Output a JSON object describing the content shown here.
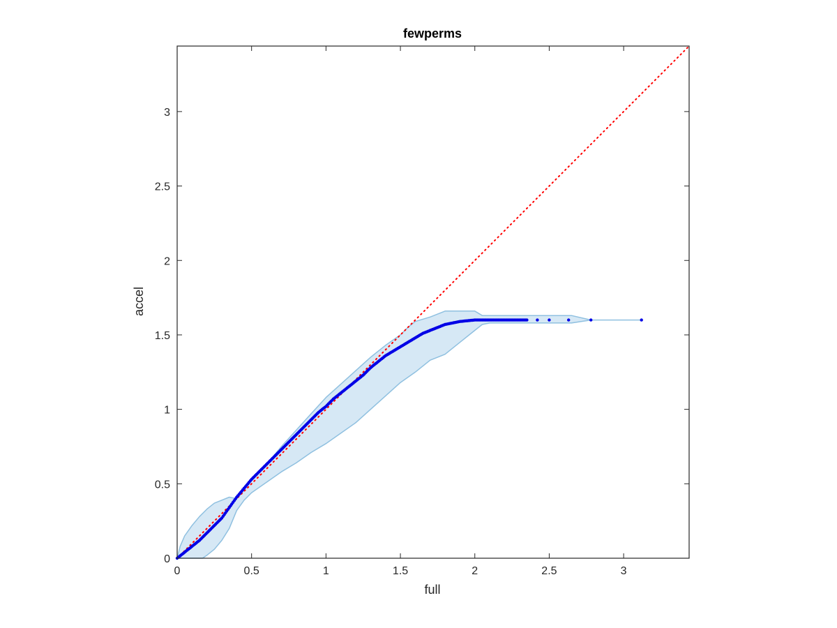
{
  "chart_data": {
    "type": "scatter",
    "title": "fewperms",
    "xlabel": "full",
    "ylabel": "accel",
    "xlim": [
      0,
      3.44
    ],
    "ylim": [
      0,
      3.44
    ],
    "xticks": [
      0,
      0.5,
      1,
      1.5,
      2,
      2.5,
      3
    ],
    "yticks": [
      0,
      0.5,
      1,
      1.5,
      2,
      2.5,
      3
    ],
    "xtick_labels": [
      "0",
      "0.5",
      "1",
      "1.5",
      "2",
      "2.5",
      "3"
    ],
    "ytick_labels": [
      "0",
      "0.5",
      "1",
      "1.5",
      "2",
      "2.5",
      "3"
    ],
    "grid": false,
    "colors": {
      "points": "#0000e6",
      "band_fill": "#d6e8f5",
      "band_edge": "#8fc0e0",
      "reference": "#ff0000",
      "axes": "#262626"
    },
    "reference_line": {
      "style": "dotted",
      "x": [
        0,
        3.44
      ],
      "y": [
        0,
        3.44
      ]
    },
    "confidence_band": {
      "upper": {
        "x": [
          0,
          0.02,
          0.05,
          0.1,
          0.15,
          0.2,
          0.25,
          0.3,
          0.35,
          0.4,
          0.5,
          0.6,
          0.7,
          0.8,
          0.9,
          1.0,
          1.1,
          1.2,
          1.3,
          1.4,
          1.5,
          1.55,
          1.6,
          1.7,
          1.8,
          1.9,
          2.0,
          2.05,
          2.1,
          2.3,
          2.5,
          2.65,
          2.78,
          3.12
        ],
        "y": [
          0,
          0.08,
          0.15,
          0.22,
          0.28,
          0.33,
          0.37,
          0.39,
          0.41,
          0.4,
          0.52,
          0.63,
          0.75,
          0.86,
          0.97,
          1.08,
          1.17,
          1.26,
          1.35,
          1.43,
          1.5,
          1.55,
          1.59,
          1.62,
          1.66,
          1.66,
          1.66,
          1.63,
          1.63,
          1.63,
          1.63,
          1.63,
          1.6,
          1.6
        ]
      },
      "lower": {
        "x": [
          3.12,
          2.78,
          2.65,
          2.5,
          2.3,
          2.1,
          2.05,
          2.0,
          1.9,
          1.8,
          1.7,
          1.6,
          1.5,
          1.4,
          1.3,
          1.2,
          1.1,
          1.0,
          0.9,
          0.8,
          0.7,
          0.6,
          0.5,
          0.45,
          0.4,
          0.35,
          0.3,
          0.25,
          0.2,
          0.17,
          0.0
        ],
        "y": [
          1.6,
          1.6,
          1.58,
          1.58,
          1.58,
          1.58,
          1.57,
          1.53,
          1.45,
          1.37,
          1.33,
          1.25,
          1.18,
          1.09,
          1.0,
          0.91,
          0.84,
          0.77,
          0.71,
          0.64,
          0.58,
          0.51,
          0.44,
          0.39,
          0.32,
          0.2,
          0.12,
          0.06,
          0.02,
          0.0,
          0.0
        ]
      }
    },
    "series": [
      {
        "style": "points",
        "x": [
          0,
          0.05,
          0.1,
          0.15,
          0.2,
          0.25,
          0.3,
          0.35,
          0.4,
          0.45,
          0.5,
          0.55,
          0.6,
          0.65,
          0.7,
          0.75,
          0.8,
          0.85,
          0.9,
          0.95,
          1.0,
          1.05,
          1.1,
          1.15,
          1.2,
          1.25,
          1.3,
          1.35,
          1.4,
          1.45,
          1.5,
          1.55,
          1.6,
          1.65,
          1.7,
          1.75,
          1.8,
          1.85,
          1.9,
          1.95,
          2.0,
          2.05,
          2.1,
          2.15,
          2.2,
          2.25,
          2.3,
          2.35,
          2.42,
          2.5,
          2.63,
          2.78,
          3.12
        ],
        "y": [
          0,
          0.04,
          0.08,
          0.12,
          0.17,
          0.22,
          0.27,
          0.34,
          0.41,
          0.47,
          0.53,
          0.58,
          0.63,
          0.68,
          0.73,
          0.78,
          0.83,
          0.88,
          0.93,
          0.98,
          1.02,
          1.07,
          1.11,
          1.15,
          1.19,
          1.23,
          1.28,
          1.32,
          1.36,
          1.39,
          1.42,
          1.45,
          1.48,
          1.51,
          1.53,
          1.55,
          1.57,
          1.58,
          1.59,
          1.595,
          1.6,
          1.6,
          1.6,
          1.6,
          1.6,
          1.6,
          1.6,
          1.6,
          1.6,
          1.6,
          1.6,
          1.6,
          1.6
        ]
      }
    ]
  }
}
